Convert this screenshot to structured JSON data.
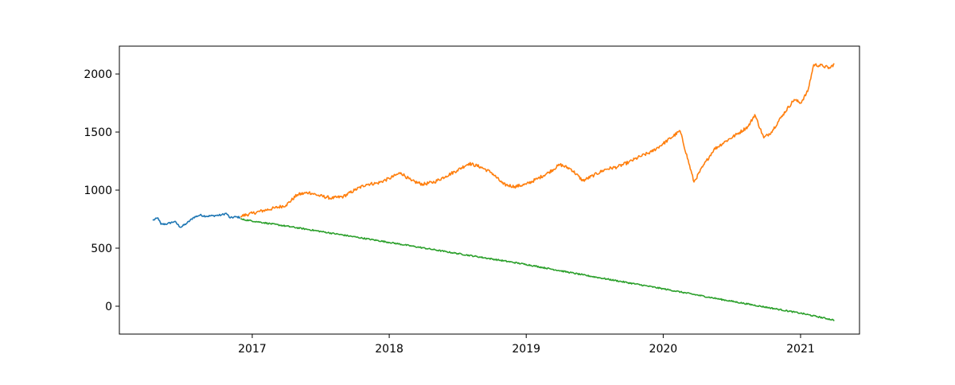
{
  "chart_data": {
    "type": "line",
    "title": "",
    "xlabel": "",
    "ylabel": "",
    "x_axis": {
      "kind": "date",
      "range": [
        "2016-01-13",
        "2021-06-07"
      ],
      "ticks": [
        "2017-01-01",
        "2018-01-01",
        "2019-01-01",
        "2020-01-01",
        "2021-01-01"
      ],
      "tick_labels": [
        "2017",
        "2018",
        "2019",
        "2020",
        "2021"
      ]
    },
    "y_axis": {
      "range": [
        -240,
        2240
      ],
      "ticks": [
        0,
        500,
        1000,
        1500,
        2000
      ],
      "tick_labels": [
        "0",
        "500",
        "1000",
        "1500",
        "2000"
      ]
    },
    "grid": false,
    "legend": "none",
    "series": [
      {
        "color": "#1f77b4",
        "points": [
          [
            "2016-04-11",
            740
          ],
          [
            "2016-04-25",
            760
          ],
          [
            "2016-05-03",
            705
          ],
          [
            "2016-05-20",
            710
          ],
          [
            "2016-06-08",
            730
          ],
          [
            "2016-06-24",
            680
          ],
          [
            "2016-07-11",
            715
          ],
          [
            "2016-07-29",
            765
          ],
          [
            "2016-08-15",
            785
          ],
          [
            "2016-09-01",
            775
          ],
          [
            "2016-09-20",
            780
          ],
          [
            "2016-10-10",
            785
          ],
          [
            "2016-10-24",
            800
          ],
          [
            "2016-11-03",
            760
          ],
          [
            "2016-11-18",
            770
          ],
          [
            "2016-11-30",
            765
          ]
        ]
      },
      {
        "color": "#ff7f0e",
        "points": [
          [
            "2016-12-01",
            775
          ],
          [
            "2017-01-01",
            800
          ],
          [
            "2017-02-01",
            825
          ],
          [
            "2017-03-01",
            845
          ],
          [
            "2017-04-01",
            870
          ],
          [
            "2017-05-01",
            960
          ],
          [
            "2017-06-01",
            980
          ],
          [
            "2017-07-01",
            950
          ],
          [
            "2017-08-01",
            930
          ],
          [
            "2017-09-01",
            945
          ],
          [
            "2017-10-01",
            1000
          ],
          [
            "2017-11-01",
            1050
          ],
          [
            "2017-12-01",
            1060
          ],
          [
            "2018-01-01",
            1100
          ],
          [
            "2018-02-01",
            1150
          ],
          [
            "2018-03-01",
            1080
          ],
          [
            "2018-04-01",
            1050
          ],
          [
            "2018-05-01",
            1070
          ],
          [
            "2018-06-01",
            1120
          ],
          [
            "2018-07-01",
            1170
          ],
          [
            "2018-08-01",
            1230
          ],
          [
            "2018-09-01",
            1200
          ],
          [
            "2018-10-01",
            1150
          ],
          [
            "2018-11-01",
            1050
          ],
          [
            "2018-12-01",
            1030
          ],
          [
            "2019-01-01",
            1050
          ],
          [
            "2019-02-01",
            1100
          ],
          [
            "2019-03-01",
            1150
          ],
          [
            "2019-04-01",
            1220
          ],
          [
            "2019-05-01",
            1180
          ],
          [
            "2019-06-01",
            1080
          ],
          [
            "2019-07-01",
            1130
          ],
          [
            "2019-08-01",
            1180
          ],
          [
            "2019-09-01",
            1200
          ],
          [
            "2019-10-01",
            1240
          ],
          [
            "2019-11-01",
            1290
          ],
          [
            "2019-12-01",
            1330
          ],
          [
            "2020-01-01",
            1400
          ],
          [
            "2020-02-15",
            1510
          ],
          [
            "2020-03-23",
            1070
          ],
          [
            "2020-04-15",
            1200
          ],
          [
            "2020-05-15",
            1350
          ],
          [
            "2020-06-15",
            1420
          ],
          [
            "2020-07-15",
            1480
          ],
          [
            "2020-08-15",
            1550
          ],
          [
            "2020-09-01",
            1650
          ],
          [
            "2020-09-25",
            1450
          ],
          [
            "2020-10-15",
            1500
          ],
          [
            "2020-11-15",
            1650
          ],
          [
            "2020-12-15",
            1780
          ],
          [
            "2021-01-01",
            1750
          ],
          [
            "2021-01-20",
            1850
          ],
          [
            "2021-02-05",
            2080
          ],
          [
            "2021-03-01",
            2070
          ],
          [
            "2021-03-20",
            2050
          ],
          [
            "2021-04-01",
            2090
          ]
        ]
      },
      {
        "color": "#2ca02c",
        "points": [
          [
            "2016-12-01",
            750
          ],
          [
            "2017-06-01",
            660
          ],
          [
            "2018-01-01",
            550
          ],
          [
            "2018-06-01",
            470
          ],
          [
            "2019-01-01",
            360
          ],
          [
            "2019-06-01",
            270
          ],
          [
            "2020-01-01",
            150
          ],
          [
            "2020-06-01",
            60
          ],
          [
            "2021-01-01",
            -60
          ],
          [
            "2021-04-01",
            -120
          ]
        ]
      }
    ]
  }
}
